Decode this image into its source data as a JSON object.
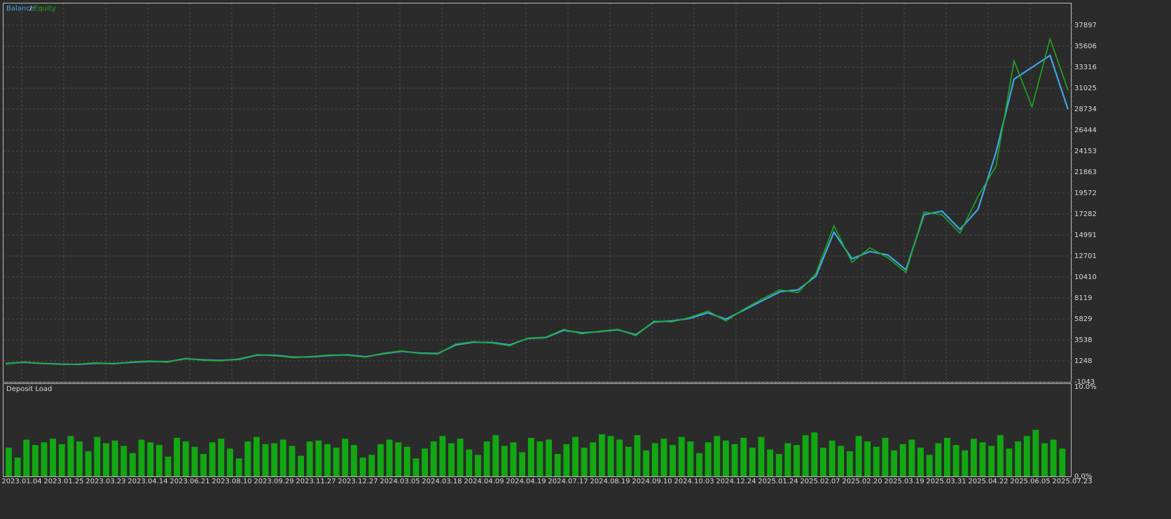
{
  "chart_data": [
    {
      "type": "line",
      "legend_separator": "/",
      "series": [
        {
          "name": "Balance",
          "color": "#3ea6e8",
          "values": [
            950,
            1100,
            980,
            900,
            870,
            1000,
            950,
            1100,
            1200,
            1150,
            1500,
            1350,
            1300,
            1450,
            1900,
            1850,
            1650,
            1700,
            1850,
            1900,
            1700,
            2050,
            2300,
            2100,
            2050,
            3000,
            3300,
            3250,
            3000,
            3700,
            3800,
            4600,
            4300,
            4450,
            4650,
            4100,
            5500,
            5600,
            5900,
            6500,
            5800,
            6800,
            7800,
            8800,
            9000,
            10500,
            15300,
            12400,
            13200,
            12800,
            11200,
            17200,
            17600,
            15600,
            17800,
            24000,
            32000,
            33300,
            34600,
            28700
          ]
        },
        {
          "name": "Equity",
          "color": "#1fa81f",
          "values": [
            900,
            1150,
            1000,
            850,
            900,
            1050,
            900,
            1150,
            1250,
            1100,
            1550,
            1300,
            1250,
            1500,
            1950,
            1800,
            1600,
            1750,
            1900,
            1850,
            1650,
            2100,
            2350,
            2050,
            2000,
            3100,
            3350,
            3200,
            2900,
            3750,
            3850,
            4700,
            4200,
            4500,
            4700,
            4000,
            5600,
            5500,
            6000,
            6700,
            5600,
            6900,
            8000,
            9000,
            8700,
            10800,
            16000,
            12000,
            13600,
            12500,
            10900,
            17500,
            17200,
            15200,
            19200,
            22500,
            34000,
            29000,
            36400,
            30800
          ]
        }
      ],
      "ylim": [
        -1043,
        40264
      ],
      "yticks": [
        -1043,
        1248,
        3538,
        5829,
        8119,
        10410,
        12701,
        14991,
        17282,
        19572,
        21863,
        24153,
        26444,
        28734,
        31025,
        33316,
        35606,
        37897
      ],
      "grid": true
    },
    {
      "type": "bar",
      "title": "Deposit Load",
      "color": "#12a812",
      "values": [
        3.2,
        2.1,
        4.1,
        3.5,
        3.8,
        4.2,
        3.6,
        4.5,
        3.9,
        2.8,
        4.4,
        3.7,
        4.0,
        3.4,
        2.6,
        4.1,
        3.8,
        3.5,
        2.2,
        4.3,
        3.9,
        3.3,
        2.5,
        3.8,
        4.2,
        3.1,
        2.0,
        3.9,
        4.4,
        3.6,
        3.7,
        4.1,
        3.4,
        2.3,
        3.9,
        4.0,
        3.6,
        3.2,
        4.2,
        3.5,
        2.1,
        2.4,
        3.6,
        4.1,
        3.8,
        3.3,
        2.0,
        3.1,
        3.9,
        4.5,
        3.7,
        4.2,
        3.0,
        2.4,
        3.9,
        4.6,
        3.4,
        3.8,
        2.7,
        4.3,
        3.9,
        4.1,
        2.5,
        3.6,
        4.4,
        3.2,
        3.8,
        4.7,
        4.5,
        4.1,
        3.3,
        4.6,
        2.9,
        3.7,
        4.2,
        3.5,
        4.4,
        3.9,
        2.6,
        3.8,
        4.5,
        4.0,
        3.6,
        4.3,
        3.2,
        4.4,
        3.0,
        2.5,
        3.7,
        3.5,
        4.6,
        4.9,
        3.2,
        4.0,
        3.4,
        2.8,
        4.5,
        3.9,
        3.3,
        4.3,
        2.9,
        3.6,
        4.1,
        3.2,
        2.4,
        3.7,
        4.3,
        3.5,
        2.9,
        4.2,
        3.8,
        3.4,
        4.6,
        3.1,
        3.9,
        4.5,
        5.2,
        3.7,
        4.1,
        3.1
      ],
      "ylim": [
        0,
        10
      ],
      "yticks": [
        {
          "value": 0,
          "label": "0.0%"
        },
        {
          "value": 10,
          "label": "10.0%"
        }
      ],
      "categories_axis": [
        "2023.01.04",
        "2023.01.25",
        "2023.03.23",
        "2023.04.14",
        "2023.06.21",
        "2023.08.10",
        "2023.09.29",
        "2023.11.27",
        "2023.12.27",
        "2024.03.05",
        "2024.03.18",
        "2024.04.09",
        "2024.04.19",
        "2024.07.17",
        "2024.08.19",
        "2024.09.10",
        "2024.10.03",
        "2024.12.24",
        "2025.01.24",
        "2025.02.07",
        "2025.02.20",
        "2025.03.19",
        "2025.03.31",
        "2025.04.22",
        "2025.06.05",
        "2025.07.23"
      ]
    }
  ]
}
